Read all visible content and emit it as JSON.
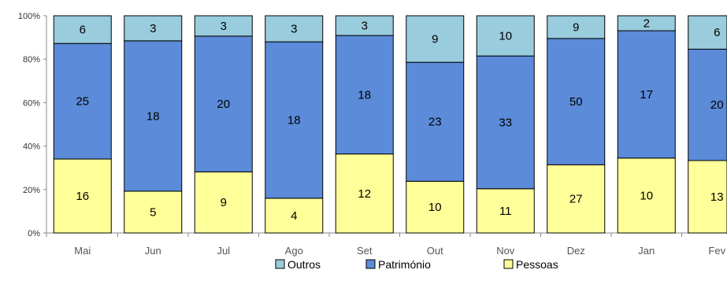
{
  "chart_data": {
    "type": "bar",
    "stacked": "percent",
    "categories": [
      "Mai",
      "Jun",
      "Jul",
      "Ago",
      "Set",
      "Out",
      "Nov",
      "Dez",
      "Jan",
      "Fev"
    ],
    "series": [
      {
        "name": "Pessoas",
        "color": "#ffff99",
        "values": [
          16,
          5,
          9,
          4,
          12,
          10,
          11,
          27,
          10,
          13
        ]
      },
      {
        "name": "Património",
        "color": "#5b8bd9",
        "values": [
          25,
          18,
          20,
          18,
          18,
          23,
          33,
          50,
          17,
          20
        ]
      },
      {
        "name": "Outros",
        "color": "#99ccdd",
        "values": [
          6,
          3,
          3,
          3,
          3,
          9,
          10,
          9,
          2,
          6
        ]
      }
    ],
    "ylim": [
      0,
      100
    ],
    "yticks": [
      "0%",
      "20%",
      "40%",
      "60%",
      "80%",
      "100%"
    ],
    "legend_order": [
      "Outros",
      "Património",
      "Pessoas"
    ],
    "legend_position": "bottom",
    "grid": false
  }
}
